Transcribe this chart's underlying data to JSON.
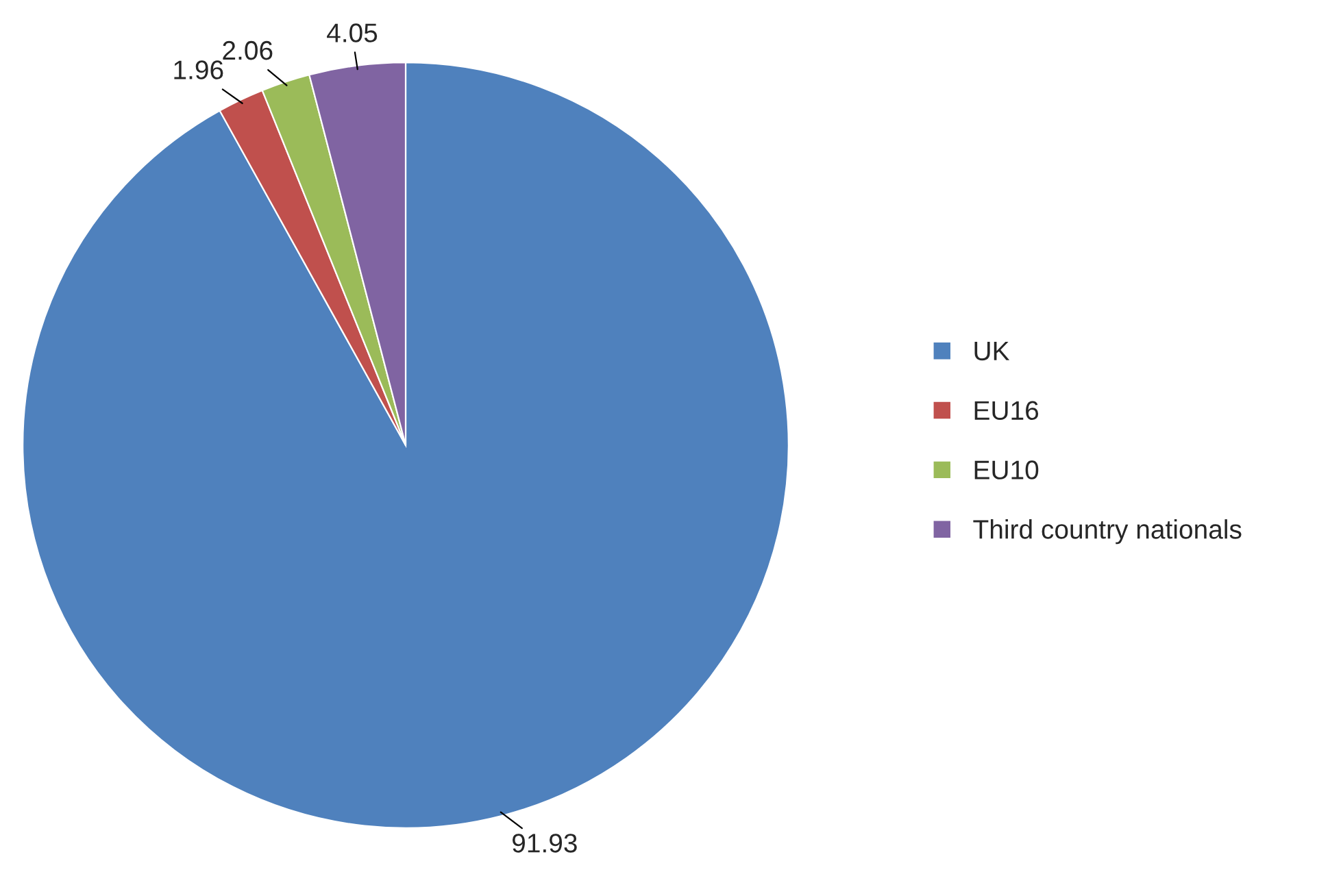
{
  "chart_data": {
    "type": "pie",
    "categories": [
      "UK",
      "EU16",
      "EU10",
      "Third country nationals"
    ],
    "values": [
      91.93,
      1.96,
      2.06,
      4.05
    ],
    "colors": [
      "#4f81bd",
      "#c0504d",
      "#9bbb59",
      "#8064a2"
    ],
    "data_labels": true,
    "legend": "right"
  }
}
